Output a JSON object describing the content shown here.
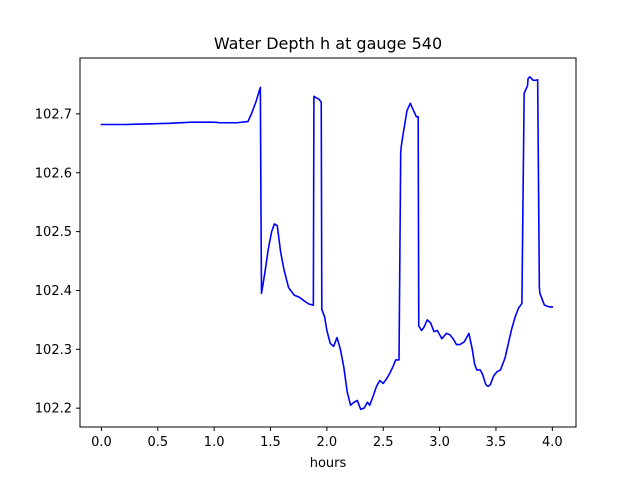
{
  "chart_data": {
    "type": "line",
    "title": "Water Depth h at gauge 540",
    "xlabel": "hours",
    "ylabel": "",
    "xlim": [
      -0.19,
      4.21
    ],
    "ylim": [
      102.168,
      102.795
    ],
    "xticks": [
      0.0,
      0.5,
      1.0,
      1.5,
      2.0,
      2.5,
      3.0,
      3.5,
      4.0
    ],
    "xtick_labels": [
      "0.0",
      "0.5",
      "1.0",
      "1.5",
      "2.0",
      "2.5",
      "3.0",
      "3.5",
      "4.0"
    ],
    "yticks": [
      102.2,
      102.3,
      102.4,
      102.5,
      102.6,
      102.7
    ],
    "ytick_labels": [
      "102.2",
      "102.3",
      "102.4",
      "102.5",
      "102.6",
      "102.7"
    ],
    "grid": false,
    "series": [
      {
        "color": "#0000ff",
        "x": [
          0.0,
          0.2,
          0.4,
          0.6,
          0.8,
          1.0,
          1.05,
          1.2,
          1.3,
          1.33,
          1.37,
          1.41,
          1.415,
          1.42,
          1.45,
          1.48,
          1.51,
          1.535,
          1.56,
          1.59,
          1.62,
          1.66,
          1.71,
          1.76,
          1.8,
          1.84,
          1.88,
          1.885,
          1.9,
          1.93,
          1.95,
          1.955,
          1.98,
          2.0,
          2.03,
          2.06,
          2.09,
          2.12,
          2.15,
          2.18,
          2.21,
          2.24,
          2.27,
          2.3,
          2.33,
          2.36,
          2.38,
          2.41,
          2.44,
          2.47,
          2.5,
          2.53,
          2.56,
          2.59,
          2.61,
          2.64,
          2.655,
          2.66,
          2.68,
          2.71,
          2.74,
          2.77,
          2.795,
          2.81,
          2.815,
          2.84,
          2.86,
          2.89,
          2.92,
          2.95,
          2.98,
          3.02,
          3.06,
          3.09,
          3.12,
          3.15,
          3.18,
          3.22,
          3.26,
          3.29,
          3.31,
          3.33,
          3.36,
          3.38,
          3.41,
          3.43,
          3.45,
          3.48,
          3.51,
          3.54,
          3.58,
          3.61,
          3.64,
          3.67,
          3.7,
          3.73,
          3.75,
          3.78,
          3.785,
          3.8,
          3.83,
          3.85,
          3.87,
          3.885,
          3.89,
          3.91,
          3.93,
          3.96,
          3.98,
          4.0
        ],
        "y": [
          102.682,
          102.682,
          102.683,
          102.684,
          102.686,
          102.686,
          102.685,
          102.685,
          102.687,
          102.7,
          102.72,
          102.745,
          102.55,
          102.395,
          102.43,
          102.47,
          102.5,
          102.513,
          102.51,
          102.465,
          102.435,
          102.405,
          102.392,
          102.388,
          102.382,
          102.377,
          102.375,
          102.73,
          102.728,
          102.725,
          102.72,
          102.368,
          102.355,
          102.332,
          102.31,
          102.305,
          102.32,
          102.3,
          102.27,
          102.228,
          102.205,
          102.21,
          102.213,
          102.198,
          102.2,
          102.21,
          102.205,
          102.22,
          102.237,
          102.247,
          102.242,
          102.25,
          102.26,
          102.272,
          102.282,
          102.282,
          102.635,
          102.645,
          102.67,
          102.705,
          102.718,
          102.705,
          102.695,
          102.695,
          102.34,
          102.332,
          102.337,
          102.35,
          102.345,
          102.33,
          102.332,
          102.318,
          102.327,
          102.325,
          102.318,
          102.308,
          102.308,
          102.313,
          102.327,
          102.3,
          102.275,
          102.265,
          102.265,
          102.258,
          102.24,
          102.237,
          102.24,
          102.255,
          102.262,
          102.265,
          102.285,
          102.31,
          102.335,
          102.355,
          102.37,
          102.378,
          102.735,
          102.748,
          102.76,
          102.763,
          102.757,
          102.757,
          102.758,
          102.405,
          102.395,
          102.385,
          102.375,
          102.373,
          102.372,
          102.372
        ]
      }
    ]
  }
}
